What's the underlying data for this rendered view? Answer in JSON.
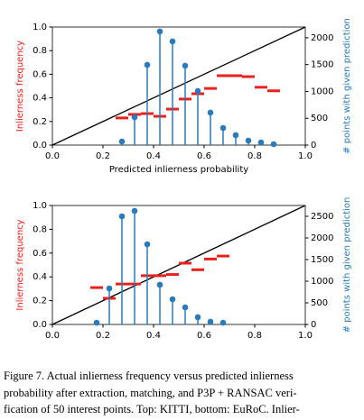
{
  "chart_data": [
    {
      "type": "stem-segment",
      "x": [
        0.275,
        0.325,
        0.375,
        0.425,
        0.475,
        0.525,
        0.575,
        0.625,
        0.675,
        0.725,
        0.775,
        0.825,
        0.875
      ],
      "series": [
        {
          "color": "#e8211d",
          "values": [
            0.23,
            0.26,
            0.267,
            0.244,
            0.305,
            0.39,
            0.435,
            0.48,
            0.588,
            0.588,
            0.58,
            0.49,
            0.46
          ]
        },
        {
          "color": "#2b7bba",
          "axis": "y2",
          "values": [
            67,
            520,
            1495,
            2118,
            1933,
            1479,
            1008,
            605,
            319,
            185,
            84,
            50,
            17
          ]
        }
      ],
      "xlabel": "Predicted inlierness probability",
      "ylabel": "Inlierness frequency",
      "y2label": "# points with given prediction",
      "xlim": [
        0,
        1
      ],
      "xticks": [
        {
          "value": 0,
          "label": "0.0"
        },
        {
          "value": 0.2,
          "label": "0.2"
        },
        {
          "value": 0.4,
          "label": "0.4"
        },
        {
          "value": 0.6,
          "label": "0.6"
        },
        {
          "value": 0.8,
          "label": "0.8"
        },
        {
          "value": 1,
          "label": "1.0"
        }
      ],
      "ylim": [
        0,
        1
      ],
      "yticks": [
        {
          "value": 0,
          "label": "0.0"
        },
        {
          "value": 0.2,
          "label": "0.2"
        },
        {
          "value": 0.4,
          "label": "0.4"
        },
        {
          "value": 0.6,
          "label": "0.6"
        },
        {
          "value": 0.8,
          "label": "0.8"
        },
        {
          "value": 1,
          "label": "1.0"
        }
      ],
      "y2lim": [
        0,
        2200
      ],
      "y2ticks": [
        0,
        500,
        1000,
        1500,
        2000
      ]
    },
    {
      "type": "stem-segment",
      "x": [
        0.175,
        0.225,
        0.275,
        0.325,
        0.375,
        0.425,
        0.475,
        0.525,
        0.575,
        0.625,
        0.675
      ],
      "series": [
        {
          "color": "#e8211d",
          "values": [
            0.31,
            0.22,
            0.34,
            0.34,
            0.41,
            0.41,
            0.42,
            0.515,
            0.46,
            0.55,
            0.575
          ]
        },
        {
          "color": "#2b7bba",
          "axis": "y2",
          "values": [
            40,
            833,
            2500,
            2625,
            1854,
            917,
            583,
            396,
            167,
            63,
            40
          ]
        }
      ],
      "ylabel": "Inlierness frequency",
      "y2label": "# points with given prediction",
      "xlim": [
        0,
        1
      ],
      "xticks": [
        {
          "value": 0,
          "label": "0.0"
        },
        {
          "value": 0.2,
          "label": "0.2"
        },
        {
          "value": 0.4,
          "label": "0.4"
        },
        {
          "value": 0.6,
          "label": "0.6"
        },
        {
          "value": 0.8,
          "label": "0.8"
        },
        {
          "value": 1,
          "label": "1.0"
        }
      ],
      "ylim": [
        0,
        1
      ],
      "yticks": [
        {
          "value": 0,
          "label": "0.0"
        },
        {
          "value": 0.2,
          "label": "0.2"
        },
        {
          "value": 0.4,
          "label": "0.4"
        },
        {
          "value": 0.6,
          "label": "0.6"
        },
        {
          "value": 0.8,
          "label": "0.8"
        },
        {
          "value": 1,
          "label": "1.0"
        }
      ],
      "y2lim": [
        0,
        2750
      ],
      "y2ticks": [
        0,
        500,
        1000,
        1500,
        2000,
        2500
      ]
    }
  ],
  "caption": [
    "Figure 7.   Actual inlierness frequency versus predicted inlierness",
    "probability after extraction, matching, and P3P + RANSAC veri-",
    "fication of 50 interest points. Top: KITTI, bottom: EuRoC. Inlier-"
  ]
}
